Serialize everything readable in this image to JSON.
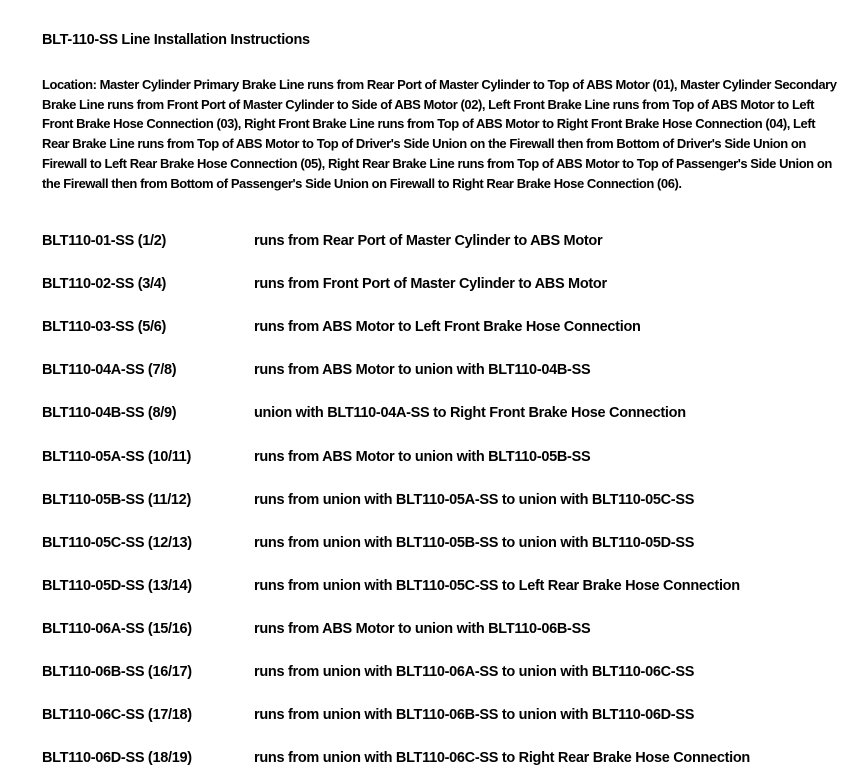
{
  "title": "BLT-110-SS Line Installation Instructions",
  "location": "Location: Master Cylinder Primary Brake Line runs from Rear Port of Master Cylinder to Top of ABS Motor (01), Master Cylinder Secondary Brake Line runs from Front Port of Master Cylinder to Side of ABS Motor (02), Left Front Brake Line runs from Top of ABS Motor to Left Front Brake Hose Connection (03), Right Front Brake Line runs from Top of ABS Motor to Right Front Brake Hose Connection (04), Left Rear Brake Line runs from Top of ABS Motor to Top of Driver's Side Union on the Firewall then from Bottom of Driver's Side Union on Firewall to Left Rear Brake Hose Connection (05), Right Rear Brake Line runs from Top of ABS Motor to Top of Passenger's Side Union on the Firewall then from Bottom of Passenger's Side Union on Firewall to Right Rear Brake Hose Connection (06).",
  "lines": [
    {
      "code": "BLT110-01-SS (1/2)",
      "desc": "runs from Rear Port of Master Cylinder to ABS Motor"
    },
    {
      "code": "BLT110-02-SS (3/4)",
      "desc": "runs from Front Port of Master Cylinder to ABS Motor"
    },
    {
      "code": "BLT110-03-SS (5/6)",
      "desc": "runs from ABS Motor to Left Front Brake Hose Connection"
    },
    {
      "code": "BLT110-04A-SS (7/8)",
      "desc": "runs from ABS Motor to union with BLT110-04B-SS"
    },
    {
      "code": "BLT110-04B-SS (8/9)",
      "desc": "union with BLT110-04A-SS to Right Front Brake Hose Connection"
    },
    {
      "code": "BLT110-05A-SS (10/11)",
      "desc": "runs from ABS Motor to union with BLT110-05B-SS"
    },
    {
      "code": "BLT110-05B-SS (11/12)",
      "desc": "runs from union with BLT110-05A-SS to union with BLT110-05C-SS"
    },
    {
      "code": "BLT110-05C-SS (12/13)",
      "desc": "runs from union with BLT110-05B-SS to union with BLT110-05D-SS"
    },
    {
      "code": "BLT110-05D-SS (13/14)",
      "desc": "runs from union with BLT110-05C-SS to Left Rear Brake Hose Connection"
    },
    {
      "code": "BLT110-06A-SS (15/16)",
      "desc": "runs from ABS Motor to union with BLT110-06B-SS"
    },
    {
      "code": "BLT110-06B-SS (16/17)",
      "desc": "runs from union with BLT110-06A-SS to union with BLT110-06C-SS"
    },
    {
      "code": "BLT110-06C-SS (17/18)",
      "desc": "runs from union with BLT110-06B-SS to union with BLT110-06D-SS"
    },
    {
      "code": "BLT110-06D-SS (18/19)",
      "desc": "runs from union with BLT110-06C-SS to Right Rear Brake Hose Connection"
    }
  ]
}
